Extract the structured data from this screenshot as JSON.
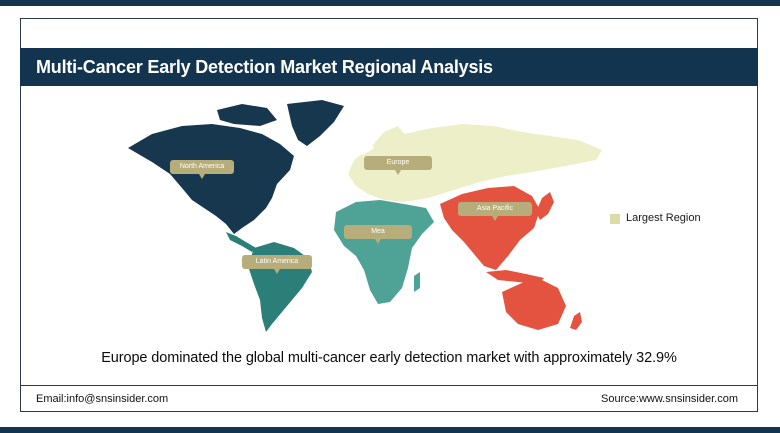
{
  "header": {
    "title": "Multi-Cancer Early Detection Market Regional Analysis"
  },
  "regions": [
    {
      "id": "north-america",
      "label": "North America",
      "color": "#17374f"
    },
    {
      "id": "europe",
      "label": "Europe",
      "color": "#ecefc8",
      "largest": true
    },
    {
      "id": "asia-pacific",
      "label": "Asia Pacific",
      "color": "#e3533f"
    },
    {
      "id": "mea",
      "label": "Mea",
      "color": "#4ea396"
    },
    {
      "id": "latin-america",
      "label": "Latin America",
      "color": "#2b7f78"
    }
  ],
  "legend": {
    "label": "Largest Region",
    "color": "#dcdcab"
  },
  "statement": "Europe dominated the global multi-cancer early detection market with approximately 32.9%",
  "footer": {
    "email": "Email:info@snsinsider.com",
    "source": "Source:www.snsinsider.com"
  },
  "colors": {
    "brand": "#12344f",
    "callout": "#b6ad7a"
  }
}
